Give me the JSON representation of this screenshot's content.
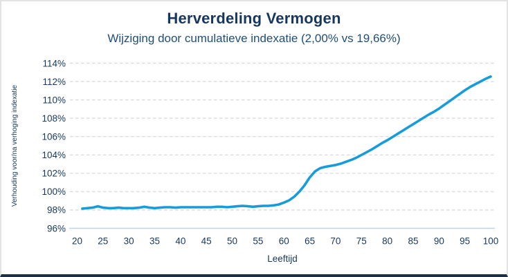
{
  "chart_data": {
    "type": "line",
    "title": "Herverdeling Vermogen",
    "subtitle": "Wijziging door cumulatieve indexatie (2,00% vs 19,66%)",
    "xlabel": "Leeftijd",
    "ylabel": "Verhouding voor/na verhoging indexatie",
    "xlim": [
      18.6,
      100.8
    ],
    "ylim": [
      96,
      114
    ],
    "x_ticks": [
      20,
      25,
      30,
      35,
      40,
      45,
      50,
      55,
      60,
      65,
      70,
      75,
      80,
      85,
      90,
      95,
      100
    ],
    "y_ticks": [
      96,
      98,
      100,
      102,
      104,
      106,
      108,
      110,
      112,
      114
    ],
    "y_tick_suffix": "%",
    "grid": "horizontal-dashed",
    "legend": "none",
    "colors": {
      "line": "#189cd9",
      "gridline": "#dbdbdb",
      "axis_line": "#bdd7ee",
      "text": "#17375e",
      "card_bottom_border": "#1f3045",
      "card_border": "#e3e3e3"
    },
    "series": [
      {
        "name": "Verhouding voor/na verhoging indexatie",
        "color": "#189cd9",
        "x": [
          21,
          22,
          23,
          24,
          25,
          26,
          27,
          28,
          29,
          30,
          31,
          32,
          33,
          34,
          35,
          36,
          37,
          38,
          39,
          40,
          41,
          42,
          43,
          44,
          45,
          46,
          47,
          48,
          49,
          50,
          51,
          52,
          53,
          54,
          55,
          56,
          57,
          58,
          59,
          60,
          61,
          62,
          63,
          64,
          65,
          66,
          67,
          68,
          69,
          70,
          71,
          72,
          73,
          74,
          75,
          76,
          77,
          78,
          79,
          80,
          81,
          82,
          83,
          84,
          85,
          86,
          87,
          88,
          89,
          90,
          91,
          92,
          93,
          94,
          95,
          96,
          97,
          98,
          99,
          100
        ],
        "y": [
          98.15,
          98.2,
          98.25,
          98.4,
          98.25,
          98.2,
          98.2,
          98.25,
          98.2,
          98.2,
          98.2,
          98.25,
          98.35,
          98.25,
          98.2,
          98.25,
          98.3,
          98.3,
          98.25,
          98.3,
          98.3,
          98.3,
          98.3,
          98.3,
          98.3,
          98.3,
          98.35,
          98.35,
          98.3,
          98.35,
          98.4,
          98.45,
          98.4,
          98.35,
          98.4,
          98.45,
          98.45,
          98.5,
          98.6,
          98.8,
          99.05,
          99.45,
          100.0,
          100.7,
          101.55,
          102.2,
          102.55,
          102.7,
          102.8,
          102.9,
          103.05,
          103.25,
          103.45,
          103.7,
          104.0,
          104.3,
          104.6,
          104.95,
          105.3,
          105.6,
          105.95,
          106.3,
          106.65,
          107.0,
          107.35,
          107.7,
          108.05,
          108.4,
          108.7,
          109.05,
          109.45,
          109.85,
          110.25,
          110.65,
          111.05,
          111.4,
          111.7,
          112.0,
          112.3,
          112.55
        ]
      }
    ]
  }
}
